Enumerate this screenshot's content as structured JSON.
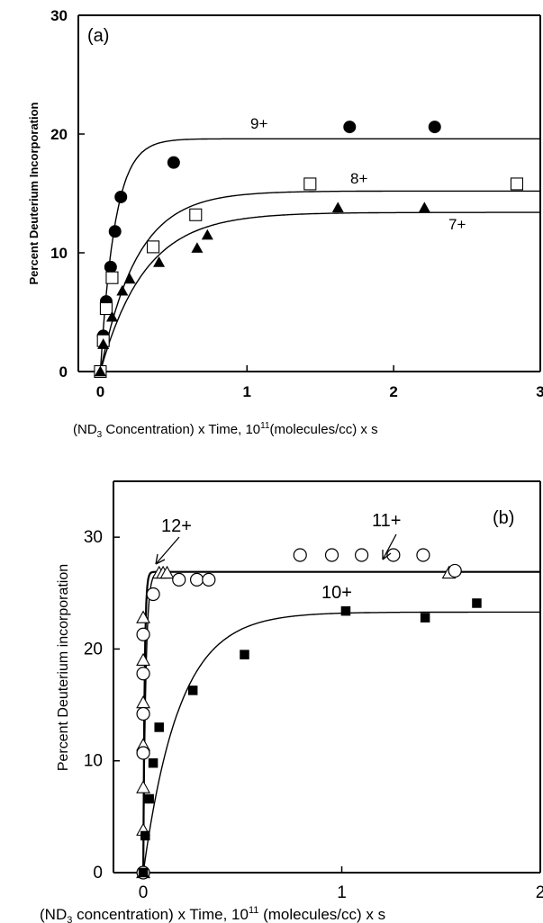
{
  "chart_data": [
    {
      "type": "scatter",
      "panel_label": "(a)",
      "ylabel": "Percent Deuterium Incorporation",
      "xlabel": {
        "prefix": "(ND",
        "sub": "3",
        "middle": " Concentration) x Time, 10",
        "sup": "11",
        "suffix": "(molecules/cc) x s"
      },
      "xlim": [
        -0.15,
        3
      ],
      "ylim": [
        0,
        30
      ],
      "xticks": [
        0,
        1,
        2,
        3
      ],
      "yticks": [
        0,
        10,
        20,
        30
      ],
      "grid": false,
      "series": [
        {
          "name": "9+",
          "marker": "filled-circle",
          "points": [
            [
              0,
              0
            ],
            [
              0.02,
              3
            ],
            [
              0.04,
              5.9
            ],
            [
              0.07,
              8.8
            ],
            [
              0.1,
              11.8
            ],
            [
              0.14,
              14.7
            ],
            [
              0.5,
              17.6
            ],
            [
              1.7,
              20.6
            ],
            [
              2.28,
              20.6
            ]
          ],
          "fit": {
            "plateau": 19.6,
            "rate": 10
          }
        },
        {
          "name": "8+",
          "marker": "open-square",
          "points": [
            [
              0,
              0
            ],
            [
              0.02,
              2.6
            ],
            [
              0.04,
              5.3
            ],
            [
              0.08,
              7.9
            ],
            [
              0.36,
              10.5
            ],
            [
              0.65,
              13.2
            ],
            [
              1.43,
              15.8
            ],
            [
              2.84,
              15.8
            ]
          ],
          "fit": {
            "plateau": 15.2,
            "rate": 4
          }
        },
        {
          "name": "7+",
          "marker": "filled-triangle",
          "points": [
            [
              0,
              0
            ],
            [
              0.02,
              2.3
            ],
            [
              0.08,
              4.6
            ],
            [
              0.15,
              6.8
            ],
            [
              0.2,
              7.8
            ],
            [
              0.4,
              9.2
            ],
            [
              0.66,
              10.4
            ],
            [
              0.73,
              11.5
            ],
            [
              1.62,
              13.8
            ],
            [
              2.21,
              13.8
            ]
          ],
          "fit": {
            "plateau": 13.4,
            "rate": 3.3
          }
        }
      ]
    },
    {
      "type": "scatter",
      "panel_label": "(b)",
      "ylabel": "Percent Deuterium incorporation",
      "xlabel": {
        "prefix": "(ND",
        "sub": "3",
        "middle": " concentration) x Time, 10",
        "sup": "11",
        "suffix": " (molecules/cc) x s"
      },
      "xlim": [
        -0.15,
        2
      ],
      "ylim": [
        0,
        35
      ],
      "xticks": [
        0,
        1,
        2
      ],
      "yticks": [
        0,
        10,
        20,
        30
      ],
      "grid": false,
      "series": [
        {
          "name": "12+",
          "marker": "open-triangle",
          "points": [
            [
              0,
              0
            ],
            [
              0,
              3.8
            ],
            [
              0,
              7.6
            ],
            [
              0,
              11.4
            ],
            [
              0,
              15.2
            ],
            [
              0,
              19
            ],
            [
              0,
              22.8
            ],
            [
              0.08,
              26.8
            ],
            [
              0.1,
              26.8
            ],
            [
              0.12,
              26.8
            ],
            [
              1.54,
              26.8
            ]
          ],
          "fit": {
            "plateau": 26.9,
            "rate": 150,
            "bold": true
          }
        },
        {
          "name": "11+",
          "marker": "open-circle",
          "points": [
            [
              0,
              0
            ],
            [
              0,
              10.7
            ],
            [
              0,
              14.2
            ],
            [
              0,
              17.8
            ],
            [
              0,
              21.3
            ],
            [
              0.05,
              24.9
            ],
            [
              0.18,
              26.2
            ],
            [
              0.27,
              26.2
            ],
            [
              0.33,
              26.2
            ],
            [
              0.79,
              28.4
            ],
            [
              0.95,
              28.4
            ],
            [
              1.1,
              28.4
            ],
            [
              1.26,
              28.4
            ],
            [
              1.41,
              28.4
            ],
            [
              1.57,
              27
            ]
          ],
          "fit": {
            "plateau": 26.9,
            "rate": 80
          }
        },
        {
          "name": "10+",
          "marker": "filled-square",
          "points": [
            [
              0,
              0
            ],
            [
              0.01,
              3.3
            ],
            [
              0.03,
              6.6
            ],
            [
              0.05,
              9.8
            ],
            [
              0.08,
              13
            ],
            [
              0.25,
              16.3
            ],
            [
              0.51,
              19.5
            ],
            [
              1.02,
              23.4
            ],
            [
              1.42,
              22.8
            ],
            [
              1.68,
              24.1
            ]
          ],
          "fit": {
            "plateau": 23.3,
            "rate": 5.5
          }
        }
      ]
    }
  ],
  "annotations": {
    "label_12": "12+",
    "label_11": "11+"
  }
}
